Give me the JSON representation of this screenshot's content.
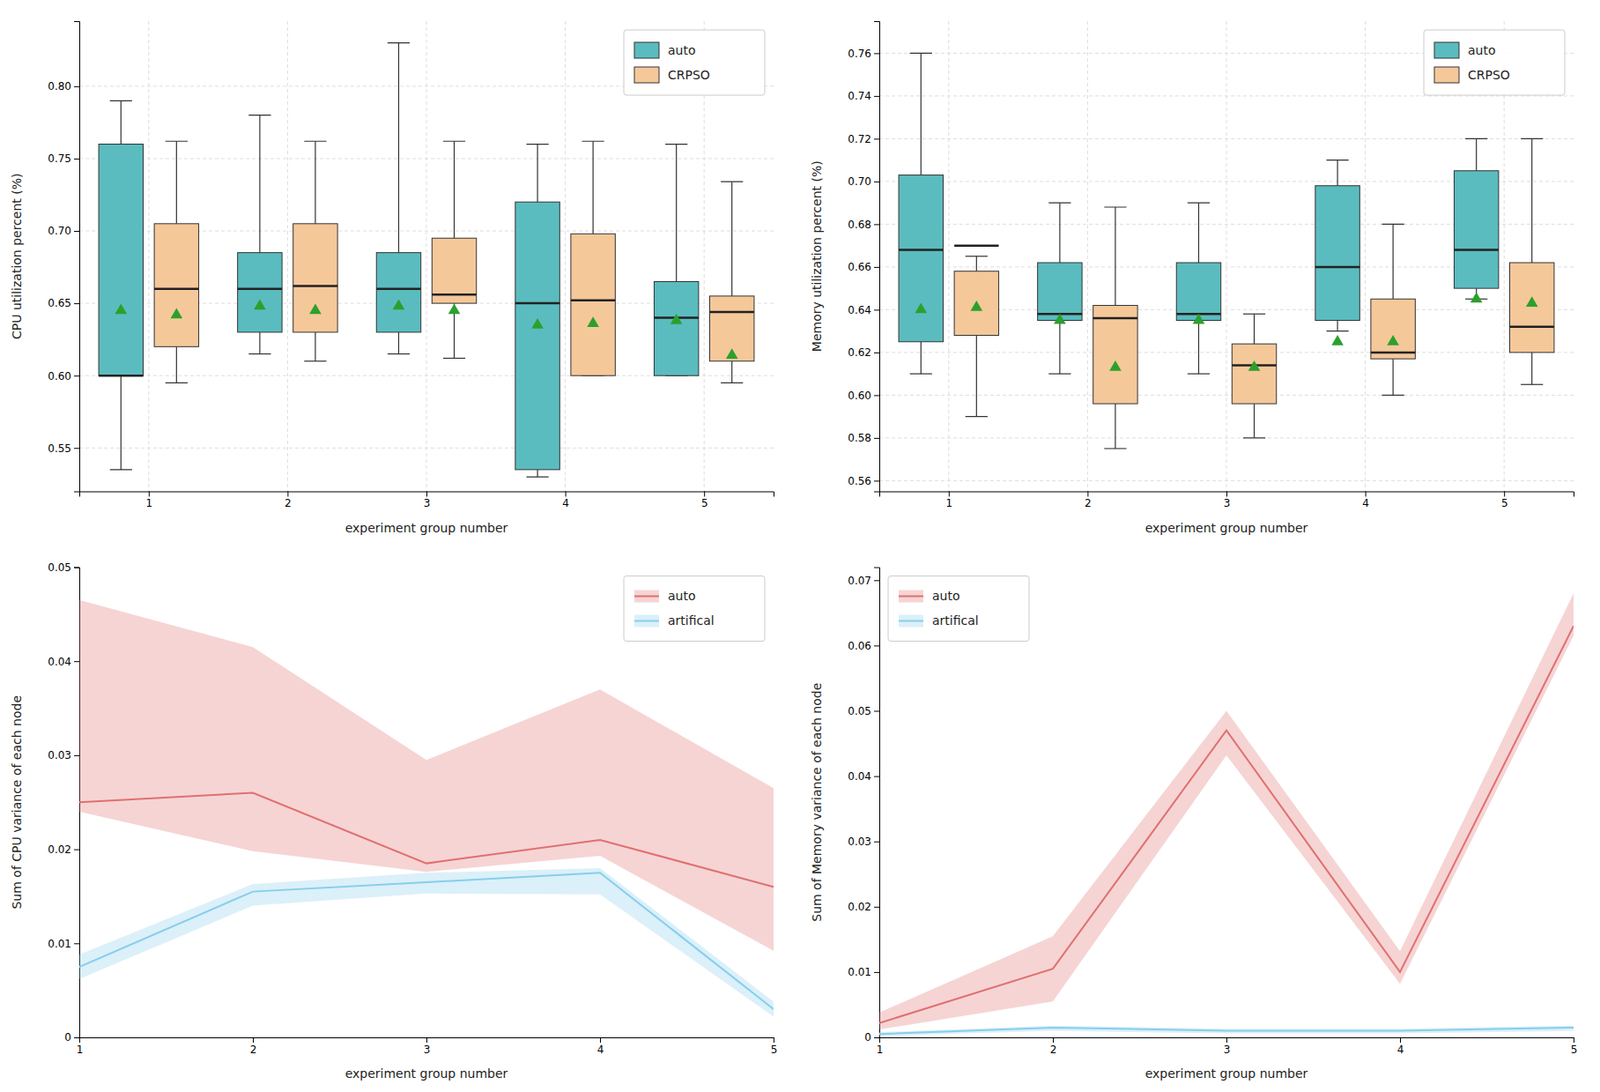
{
  "chart_data": [
    {
      "type": "box",
      "x_label": "experiment group number",
      "y_label": "CPU utilization percent (%)",
      "x": [
        1,
        2,
        3,
        4,
        5
      ],
      "xlim": [
        0.5,
        5.5
      ],
      "xticks": [
        1,
        2,
        3,
        4,
        5
      ],
      "ylim": [
        0.52,
        0.845
      ],
      "yticks": [
        0.55,
        {
          "value": 0.6,
          "label": "0.60"
        },
        0.65,
        {
          "value": 0.7,
          "label": "0.70"
        },
        0.75,
        {
          "value": 0.8,
          "label": "0.80"
        }
      ],
      "grid": true,
      "legend": "top-right",
      "series": [
        {
          "name": "auto",
          "color": "#5bbcbf",
          "whisker_low": [
            0.535,
            0.615,
            0.615,
            0.53,
            0.6
          ],
          "q1": [
            0.6,
            0.63,
            0.63,
            0.535,
            0.6
          ],
          "median": [
            0.6,
            0.66,
            0.66,
            0.65,
            0.64
          ],
          "q3": [
            0.76,
            0.685,
            0.685,
            0.72,
            0.665
          ],
          "whisker_high": [
            0.79,
            0.78,
            0.83,
            0.76,
            0.76
          ],
          "mean": [
            0.645,
            0.648,
            0.648,
            0.635,
            0.638
          ]
        },
        {
          "name": "CRPSO",
          "color": "#f5c89a",
          "whisker_low": [
            0.595,
            0.61,
            0.612,
            0.6,
            0.595
          ],
          "q1": [
            0.62,
            0.63,
            0.65,
            0.6,
            0.61
          ],
          "median": [
            0.66,
            0.662,
            0.656,
            0.652,
            0.644
          ],
          "q3": [
            0.705,
            0.705,
            0.695,
            0.698,
            0.655
          ],
          "whisker_high": [
            0.762,
            0.762,
            0.762,
            0.762,
            0.734
          ],
          "mean": [
            0.642,
            0.645,
            0.645,
            0.636,
            0.614
          ]
        }
      ]
    },
    {
      "type": "box",
      "x_label": "experiment group number",
      "y_label": "Memory utilization percent (%)",
      "x": [
        1,
        2,
        3,
        4,
        5
      ],
      "xlim": [
        0.5,
        5.5
      ],
      "xticks": [
        1,
        2,
        3,
        4,
        5
      ],
      "ylim": [
        0.555,
        0.775
      ],
      "yticks": [
        0.56,
        0.58,
        {
          "value": 0.6,
          "label": "0.60"
        },
        0.62,
        0.64,
        0.66,
        0.68,
        {
          "value": 0.7,
          "label": "0.70"
        },
        0.72,
        0.74,
        0.76
      ],
      "grid": true,
      "legend": "top-right",
      "series": [
        {
          "name": "auto",
          "color": "#5bbcbf",
          "whisker_low": [
            0.61,
            0.61,
            0.61,
            0.63,
            0.645
          ],
          "q1": [
            0.625,
            0.635,
            0.635,
            0.635,
            0.65
          ],
          "median": [
            0.668,
            0.638,
            0.638,
            0.66,
            0.668
          ],
          "q3": [
            0.703,
            0.662,
            0.662,
            0.698,
            0.705
          ],
          "whisker_high": [
            0.76,
            0.69,
            0.69,
            0.71,
            0.72
          ],
          "mean": [
            0.64,
            0.635,
            0.635,
            0.625,
            0.645
          ]
        },
        {
          "name": "CRPSO",
          "color": "#f5c89a",
          "whisker_low": [
            0.59,
            0.575,
            0.58,
            0.6,
            0.605
          ],
          "q1": [
            0.628,
            0.596,
            0.596,
            0.617,
            0.62
          ],
          "median": [
            0.67,
            0.636,
            0.614,
            0.62,
            0.632
          ],
          "q3": [
            0.658,
            0.642,
            0.624,
            0.645,
            0.662
          ],
          "whisker_high": [
            0.665,
            0.688,
            0.638,
            0.68,
            0.72
          ],
          "mean": [
            0.641,
            0.613,
            0.613,
            0.625,
            0.643
          ]
        }
      ]
    },
    {
      "type": "line",
      "x_label": "experiment group number",
      "y_label": "Sum of CPU variance of each node",
      "x": [
        1,
        2,
        3,
        4,
        5
      ],
      "xlim": [
        1,
        5
      ],
      "xticks": [
        1,
        2,
        3,
        4,
        5
      ],
      "ylim": [
        0,
        0.05
      ],
      "yticks": [
        0,
        0.01,
        0.02,
        0.03,
        0.04,
        0.05
      ],
      "grid": false,
      "legend": "top-right",
      "series": [
        {
          "name": "auto",
          "color": "#e07070",
          "values": [
            0.025,
            0.026,
            0.0185,
            0.021,
            0.016
          ],
          "upper": [
            0.0465,
            0.0415,
            0.0295,
            0.037,
            0.0265
          ],
          "lower": [
            0.024,
            0.0198,
            0.0176,
            0.0193,
            0.0092
          ]
        },
        {
          "name": "artifical",
          "color": "#87ceeb",
          "values": [
            0.0075,
            0.0155,
            0.0165,
            0.0175,
            0.003
          ],
          "upper": [
            0.0088,
            0.0163,
            0.0175,
            0.018,
            0.0038
          ],
          "lower": [
            0.0062,
            0.014,
            0.0153,
            0.0152,
            0.0022
          ]
        }
      ]
    },
    {
      "type": "line",
      "x_label": "experiment group number",
      "y_label": "Sum of Memory variance of each node",
      "x": [
        1,
        2,
        3,
        4,
        5
      ],
      "xlim": [
        1,
        5
      ],
      "xticks": [
        1,
        2,
        3,
        4,
        5
      ],
      "ylim": [
        0,
        0.072
      ],
      "yticks": [
        0,
        0.01,
        0.02,
        0.03,
        0.04,
        0.05,
        0.06,
        0.07
      ],
      "grid": false,
      "legend": "top-left",
      "series": [
        {
          "name": "auto",
          "color": "#e07070",
          "values": [
            0.0022,
            0.0105,
            0.047,
            0.01,
            0.063
          ],
          "upper": [
            0.0038,
            0.0155,
            0.05,
            0.0132,
            0.068
          ],
          "lower": [
            0.0012,
            0.0055,
            0.0432,
            0.0082,
            0.0615
          ]
        },
        {
          "name": "artifical",
          "color": "#87ceeb",
          "values": [
            0.0005,
            0.0015,
            0.001,
            0.001,
            0.0015
          ],
          "upper": [
            0.0008,
            0.0018,
            0.0013,
            0.0013,
            0.0018
          ],
          "lower": [
            0.0002,
            0.001,
            0.0006,
            0.0006,
            0.001
          ]
        }
      ]
    }
  ]
}
